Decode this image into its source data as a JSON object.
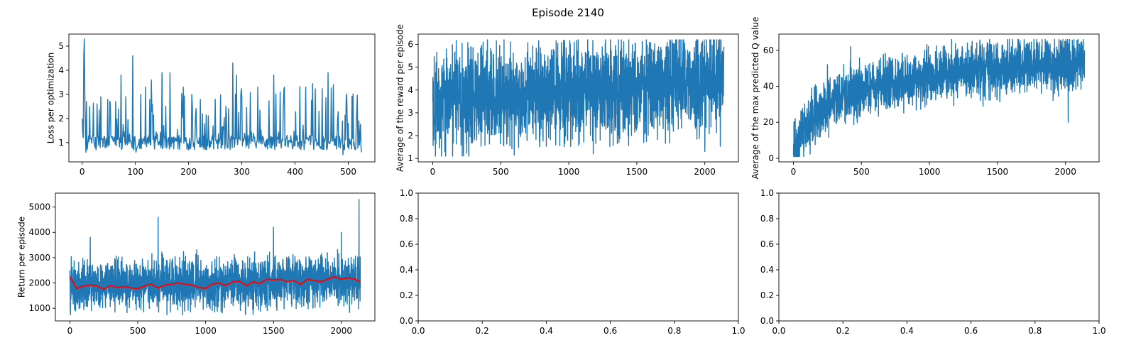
{
  "figure": {
    "suptitle": "Episode 2140",
    "colors": {
      "series": "#1f77b4",
      "moving_average": "#ff0000",
      "axes": "#000000",
      "background": "#ffffff"
    }
  },
  "chart_data": [
    {
      "id": "loss",
      "type": "line",
      "title": "",
      "xlabel": "",
      "ylabel": "Loss per optimization",
      "xlim": [
        -25,
        550
      ],
      "ylim": [
        0.2,
        5.5
      ],
      "xticks": [
        0,
        100,
        200,
        300,
        400,
        500
      ],
      "yticks": [
        1,
        2,
        3,
        4,
        5
      ],
      "grid": false,
      "legend": "none",
      "series": [
        {
          "color": "#1f77b4",
          "shape": "noisy",
          "x_range": [
            0,
            525
          ],
          "n_points": 526,
          "base": 1.0,
          "noise": 0.55,
          "min": 0.35,
          "max": 5.3,
          "points": [
            [
              0,
              2.0
            ],
            [
              1,
              1.4
            ],
            [
              2,
              1.2
            ],
            [
              3,
              4.6
            ],
            [
              4,
              5.3
            ],
            [
              5,
              3.0
            ],
            [
              6,
              1.5
            ],
            [
              7,
              0.6
            ],
            [
              8,
              2.7
            ],
            [
              10,
              0.8
            ],
            [
              14,
              2.5
            ],
            [
              28,
              2.6
            ],
            [
              53,
              2.6
            ],
            [
              63,
              2.7
            ],
            [
              73,
              3.8
            ],
            [
              95,
              4.6
            ],
            [
              101,
              0.6
            ],
            [
              110,
              3.0
            ],
            [
              130,
              3.6
            ],
            [
              150,
              3.9
            ],
            [
              165,
              3.9
            ],
            [
              190,
              3.3
            ],
            [
              206,
              3.0
            ],
            [
              226,
              2.2
            ],
            [
              250,
              2.8
            ],
            [
              270,
              2.5
            ],
            [
              283,
              4.3
            ],
            [
              290,
              3.8
            ],
            [
              300,
              2.9
            ],
            [
              330,
              3.3
            ],
            [
              360,
              3.8
            ],
            [
              380,
              3.3
            ],
            [
              420,
              3.3
            ],
            [
              445,
              2.3
            ],
            [
              462,
              3.9
            ],
            [
              480,
              2.0
            ],
            [
              490,
              0.5
            ],
            [
              500,
              1.8
            ],
            [
              516,
              2.3
            ],
            [
              520,
              1.9
            ],
            [
              525,
              0.6
            ]
          ]
        }
      ]
    },
    {
      "id": "avg-reward",
      "type": "line",
      "title": "",
      "xlabel": "",
      "ylabel": "Average of the reward per episode",
      "xlim": [
        -107,
        2247
      ],
      "ylim": [
        0.85,
        6.45
      ],
      "xticks": [
        0,
        500,
        1000,
        1500,
        2000
      ],
      "yticks": [
        1,
        2,
        3,
        4,
        5,
        6
      ],
      "grid": false,
      "legend": "none",
      "series": [
        {
          "color": "#1f77b4",
          "shape": "noisy",
          "x_range": [
            0,
            2140
          ],
          "n_points": 2141,
          "trend": [
            [
              0,
              3.5
            ],
            [
              500,
              3.7
            ],
            [
              1000,
              3.9
            ],
            [
              1500,
              4.1
            ],
            [
              2140,
              4.5
            ]
          ],
          "noise": 1.05,
          "min": 1.1,
          "max": 6.2,
          "points": [
            [
              0,
              3.5
            ],
            [
              20,
              1.1
            ],
            [
              100,
              5.8
            ],
            [
              370,
              6.1
            ],
            [
              1040,
              6.1
            ],
            [
              1180,
              1.2
            ],
            [
              2000,
              1.3
            ],
            [
              2100,
              6.2
            ],
            [
              2140,
              5.9
            ]
          ]
        }
      ]
    },
    {
      "id": "max-q",
      "type": "line",
      "title": "",
      "xlabel": "",
      "ylabel": "Average of the max predicted Q value",
      "xlim": [
        -107,
        2247
      ],
      "ylim": [
        -2,
        69
      ],
      "xticks": [
        0,
        500,
        1000,
        1500,
        2000
      ],
      "yticks": [
        0,
        20,
        40,
        60
      ],
      "grid": false,
      "legend": "none",
      "series": [
        {
          "color": "#1f77b4",
          "shape": "noisy",
          "x_range": [
            0,
            2140
          ],
          "n_points": 2141,
          "trend": [
            [
              0,
              3
            ],
            [
              100,
              18
            ],
            [
              200,
              26
            ],
            [
              300,
              32
            ],
            [
              500,
              38
            ],
            [
              800,
              42
            ],
            [
              1000,
              45
            ],
            [
              1500,
              50
            ],
            [
              2140,
              53
            ]
          ],
          "noise": 7.5,
          "min": 1,
          "max": 66,
          "points": [
            [
              0,
              2
            ],
            [
              10,
              10
            ],
            [
              170,
              40
            ],
            [
              250,
              52
            ],
            [
              420,
              62
            ],
            [
              1650,
              66
            ],
            [
              2020,
              20
            ],
            [
              2140,
              60
            ]
          ]
        }
      ]
    },
    {
      "id": "return",
      "type": "line",
      "title": "",
      "xlabel": "",
      "ylabel": "Return per episode",
      "xlim": [
        -107,
        2247
      ],
      "ylim": [
        500,
        5550
      ],
      "xticks": [
        0,
        500,
        1000,
        1500,
        2000
      ],
      "yticks": [
        1000,
        2000,
        3000,
        4000,
        5000
      ],
      "grid": false,
      "legend": "none",
      "series": [
        {
          "color": "#1f77b4",
          "shape": "noisy",
          "x_range": [
            0,
            2140
          ],
          "n_points": 2141,
          "trend": [
            [
              0,
              1900
            ],
            [
              1000,
              1950
            ],
            [
              2140,
              2150
            ]
          ],
          "noise": 480,
          "min": 650,
          "max": 5300,
          "points": [
            [
              0,
              2500
            ],
            [
              150,
              3800
            ],
            [
              650,
              4600
            ],
            [
              1500,
              4200
            ],
            [
              2000,
              4000
            ],
            [
              2130,
              5300
            ],
            [
              2140,
              1800
            ]
          ]
        },
        {
          "color": "#ff0000",
          "shape": "smooth",
          "points": [
            [
              0,
              2250
            ],
            [
              50,
              1780
            ],
            [
              100,
              1880
            ],
            [
              150,
              1920
            ],
            [
              200,
              1880
            ],
            [
              250,
              1760
            ],
            [
              300,
              1900
            ],
            [
              350,
              1820
            ],
            [
              400,
              1860
            ],
            [
              450,
              1800
            ],
            [
              500,
              1780
            ],
            [
              550,
              1880
            ],
            [
              600,
              1960
            ],
            [
              650,
              1800
            ],
            [
              700,
              1920
            ],
            [
              750,
              1950
            ],
            [
              800,
              2000
            ],
            [
              850,
              1950
            ],
            [
              900,
              1920
            ],
            [
              950,
              1820
            ],
            [
              1000,
              1790
            ],
            [
              1050,
              1960
            ],
            [
              1100,
              2000
            ],
            [
              1150,
              1900
            ],
            [
              1200,
              2050
            ],
            [
              1250,
              2070
            ],
            [
              1300,
              1900
            ],
            [
              1350,
              2050
            ],
            [
              1400,
              1980
            ],
            [
              1450,
              2150
            ],
            [
              1500,
              2120
            ],
            [
              1550,
              2150
            ],
            [
              1600,
              2050
            ],
            [
              1650,
              2100
            ],
            [
              1700,
              1950
            ],
            [
              1750,
              2150
            ],
            [
              1800,
              2100
            ],
            [
              1850,
              2050
            ],
            [
              1900,
              2150
            ],
            [
              1950,
              2250
            ],
            [
              2000,
              2150
            ],
            [
              2050,
              2200
            ],
            [
              2100,
              2150
            ],
            [
              2140,
              2050
            ]
          ]
        }
      ]
    },
    {
      "id": "empty-1",
      "type": "line",
      "title": "",
      "xlabel": "",
      "ylabel": "",
      "xlim": [
        0,
        1
      ],
      "ylim": [
        0,
        1
      ],
      "xticks": [
        0,
        0.2,
        0.4,
        0.6,
        0.8,
        1
      ],
      "yticks": [
        0,
        0.2,
        0.4,
        0.6,
        0.8,
        1
      ],
      "tick_format": "0.0",
      "grid": false,
      "legend": "none",
      "series": []
    },
    {
      "id": "empty-2",
      "type": "line",
      "title": "",
      "xlabel": "",
      "ylabel": "",
      "xlim": [
        0,
        1
      ],
      "ylim": [
        0,
        1
      ],
      "xticks": [
        0,
        0.2,
        0.4,
        0.6,
        0.8,
        1
      ],
      "yticks": [
        0,
        0.2,
        0.4,
        0.6,
        0.8,
        1
      ],
      "tick_format": "0.0",
      "grid": false,
      "legend": "none",
      "series": []
    }
  ]
}
